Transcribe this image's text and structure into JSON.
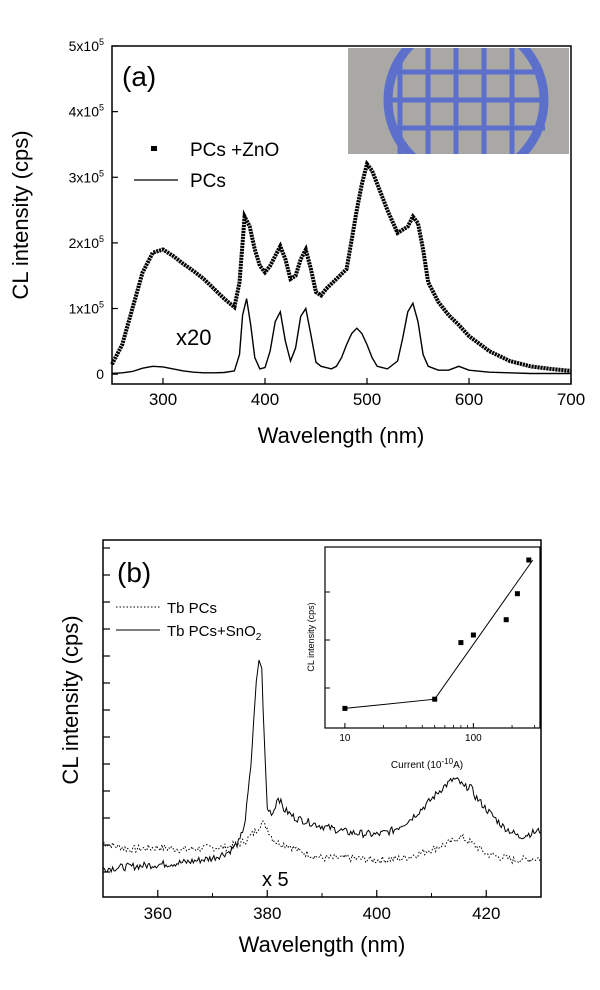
{
  "chart_data": [
    {
      "type": "line",
      "panel_label": "(a)",
      "xlabel": "Wavelength (nm)",
      "ylabel": "CL intensity (cps)",
      "xlim": [
        250,
        700
      ],
      "ylim": [
        -15000,
        500000
      ],
      "x_ticks": [
        300,
        400,
        500,
        600,
        700
      ],
      "x_tick_labels": [
        "300",
        "400",
        "500",
        "600",
        "700"
      ],
      "y_ticks": [
        0,
        100000,
        200000,
        300000,
        400000,
        500000
      ],
      "y_tick_base": [
        "0",
        "1x10",
        "2x10",
        "3x10",
        "4x10",
        "5x10"
      ],
      "y_tick_exp": [
        "",
        "5",
        "5",
        "5",
        "5",
        "5"
      ],
      "annotation": "x20",
      "legend_position": "upper-left",
      "inset_photo_colors": {
        "background": "#a9a8a4",
        "grid": "#5b6fcb"
      },
      "series": [
        {
          "name": "PCs +ZnO",
          "style": "dotted-thick",
          "x": [
            250,
            260,
            270,
            280,
            290,
            300,
            310,
            320,
            330,
            340,
            350,
            360,
            370,
            375,
            380,
            385,
            390,
            395,
            400,
            405,
            410,
            415,
            420,
            425,
            430,
            435,
            440,
            445,
            450,
            455,
            460,
            470,
            480,
            490,
            495,
            500,
            505,
            510,
            520,
            530,
            540,
            545,
            550,
            555,
            560,
            570,
            580,
            590,
            600,
            620,
            640,
            660,
            680,
            700
          ],
          "y": [
            15000,
            45000,
            100000,
            155000,
            185000,
            190000,
            180000,
            168000,
            157000,
            145000,
            130000,
            115000,
            102000,
            140000,
            240000,
            225000,
            190000,
            165000,
            155000,
            165000,
            180000,
            195000,
            175000,
            145000,
            150000,
            175000,
            190000,
            160000,
            125000,
            120000,
            130000,
            145000,
            160000,
            250000,
            290000,
            320000,
            310000,
            290000,
            250000,
            215000,
            225000,
            240000,
            230000,
            190000,
            140000,
            110000,
            90000,
            75000,
            58000,
            35000,
            20000,
            12000,
            8000,
            5000
          ]
        },
        {
          "name": "PCs",
          "style": "solid-thin",
          "x": [
            250,
            260,
            270,
            280,
            290,
            300,
            310,
            320,
            330,
            340,
            350,
            360,
            370,
            375,
            378,
            382,
            386,
            390,
            395,
            400,
            405,
            410,
            415,
            420,
            425,
            430,
            435,
            440,
            445,
            450,
            455,
            460,
            465,
            470,
            475,
            480,
            485,
            490,
            495,
            500,
            505,
            510,
            520,
            530,
            535,
            540,
            545,
            550,
            555,
            560,
            570,
            580,
            590,
            600,
            620,
            640,
            660,
            680,
            700
          ],
          "y": [
            1000,
            2000,
            4000,
            9000,
            12000,
            11000,
            8000,
            5000,
            3000,
            2000,
            2000,
            2500,
            5000,
            30000,
            90000,
            115000,
            75000,
            25000,
            8000,
            10000,
            35000,
            80000,
            95000,
            50000,
            20000,
            40000,
            88000,
            100000,
            60000,
            18000,
            12000,
            10000,
            8000,
            12000,
            25000,
            45000,
            62000,
            70000,
            62000,
            45000,
            25000,
            12000,
            8000,
            20000,
            55000,
            95000,
            108000,
            80000,
            30000,
            12000,
            6000,
            6000,
            12000,
            6000,
            3000,
            2000,
            1000,
            1000,
            1000
          ]
        }
      ]
    },
    {
      "type": "line",
      "panel_label": "(b)",
      "xlabel": "Wavelength (nm)",
      "ylabel": "CL intensity (cps)",
      "xlim": [
        350,
        430
      ],
      "x_ticks": [
        360,
        380,
        400,
        420
      ],
      "x_tick_labels": [
        "360",
        "380",
        "400",
        "420"
      ],
      "annotation": "x 5",
      "legend_position": "upper-left",
      "series": [
        {
          "name_base": "Tb PCs",
          "name_sub": "",
          "style": "dotted",
          "x": [
            350,
            355,
            360,
            365,
            370,
            372,
            374,
            376,
            378,
            379,
            380,
            381,
            382,
            384,
            386,
            390,
            395,
            400,
            405,
            410,
            412,
            414,
            415,
            416,
            418,
            420,
            425,
            430
          ],
          "y": [
            0.14,
            0.11,
            0.12,
            0.11,
            0.12,
            0.12,
            0.13,
            0.15,
            0.2,
            0.24,
            0.21,
            0.16,
            0.14,
            0.13,
            0.1,
            0.07,
            0.07,
            0.06,
            0.07,
            0.11,
            0.13,
            0.15,
            0.17,
            0.16,
            0.13,
            0.09,
            0.06,
            0.07
          ]
        },
        {
          "name_base": "Tb PCs+SnO",
          "name_sub": "2",
          "style": "solid",
          "x": [
            350,
            355,
            360,
            365,
            370,
            373,
            375,
            376,
            377,
            378,
            378.5,
            379,
            379.5,
            380,
            381,
            382,
            383,
            385,
            390,
            395,
            400,
            403,
            406,
            409,
            412,
            414,
            415,
            416,
            417,
            418,
            420,
            423,
            426,
            430
          ],
          "y": [
            0.02,
            0.03,
            0.04,
            0.05,
            0.07,
            0.1,
            0.15,
            0.25,
            0.5,
            0.9,
            1.0,
            0.96,
            0.6,
            0.3,
            0.28,
            0.36,
            0.3,
            0.26,
            0.22,
            0.19,
            0.18,
            0.2,
            0.25,
            0.32,
            0.4,
            0.44,
            0.43,
            0.4,
            0.41,
            0.36,
            0.3,
            0.22,
            0.17,
            0.2
          ]
        }
      ],
      "inset": {
        "type": "scatter",
        "xscale": "log",
        "xlabel_base": "Current (10",
        "xlabel_sup": "-10",
        "xlabel_end": "A)",
        "ylabel": "CL intensity (cps)",
        "xlim": [
          7,
          330
        ],
        "x_ticks": [
          10,
          100
        ],
        "x_tick_labels": [
          "10",
          "100"
        ],
        "points": {
          "x": [
            10,
            50,
            80,
            100,
            180,
            220,
            270
          ],
          "y": [
            0.03,
            0.09,
            0.46,
            0.51,
            0.61,
            0.78,
            1.0
          ]
        },
        "fit_line": {
          "x": [
            10,
            50,
            290
          ],
          "y": [
            0.03,
            0.09,
            1.0
          ]
        }
      }
    }
  ]
}
